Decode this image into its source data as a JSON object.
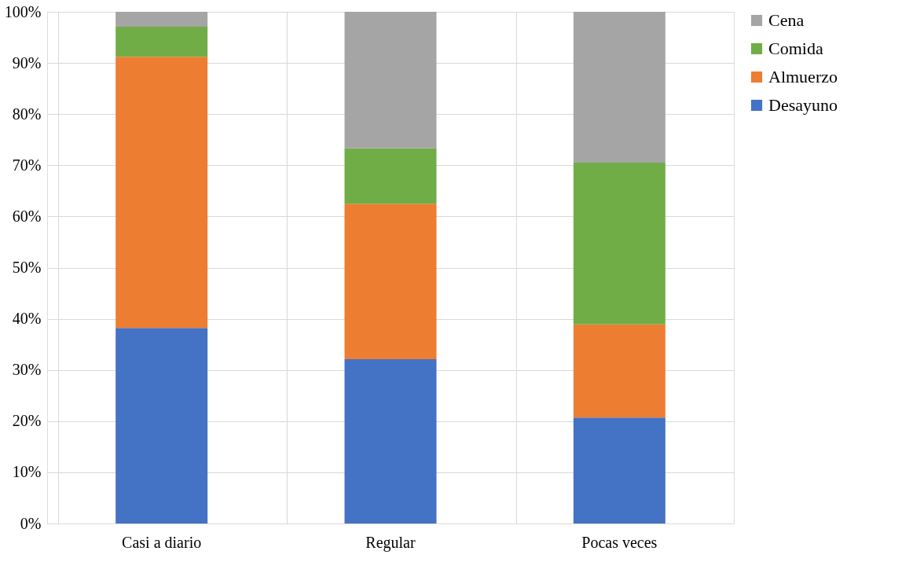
{
  "chart_data": {
    "type": "bar",
    "stacked": true,
    "categories": [
      "Casi a diario",
      "Regular",
      "Pocas veces"
    ],
    "series": [
      {
        "name": "Desayuno",
        "color": "#4472c4",
        "values": [
          38.2,
          32.1,
          20.7
        ]
      },
      {
        "name": "Almuerzo",
        "color": "#ed7d31",
        "values": [
          53.0,
          30.4,
          18.2
        ]
      },
      {
        "name": "Comida",
        "color": "#70ad47",
        "values": [
          5.9,
          10.8,
          31.6
        ]
      },
      {
        "name": "Cena",
        "color": "#a5a5a5",
        "values": [
          2.9,
          26.7,
          29.5
        ]
      }
    ],
    "ylim": [
      0,
      100
    ],
    "yticks": [
      {
        "value": 0,
        "label": "0%"
      },
      {
        "value": 10,
        "label": "10%"
      },
      {
        "value": 20,
        "label": "20%"
      },
      {
        "value": 30,
        "label": "30%"
      },
      {
        "value": 40,
        "label": "40%"
      },
      {
        "value": 50,
        "label": "50%"
      },
      {
        "value": 60,
        "label": "60%"
      },
      {
        "value": 70,
        "label": "70%"
      },
      {
        "value": 80,
        "label": "80%"
      },
      {
        "value": 90,
        "label": "90%"
      },
      {
        "value": 100,
        "label": "100%"
      }
    ],
    "grid": true,
    "legend": "right"
  }
}
